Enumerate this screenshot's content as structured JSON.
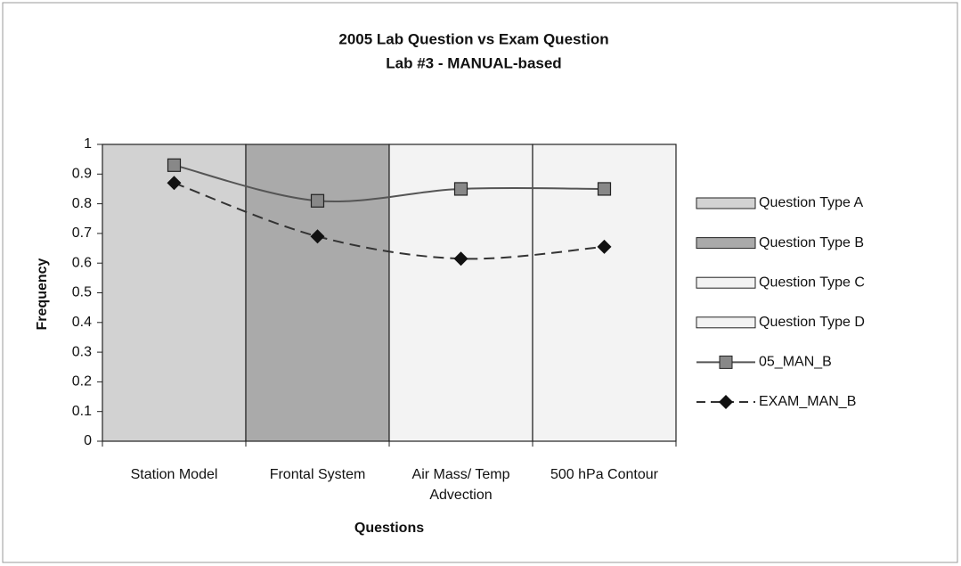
{
  "chart_data": {
    "type": "bar",
    "title": "2005 Lab Question vs Exam Question",
    "subtitle": "Lab #3 - MANUAL-based",
    "x_label": "Questions",
    "y_label": "Frequency",
    "categories": [
      "Station Model",
      "Frontal System",
      "Air Mass/ Temp Advection",
      "500 hPa Contour"
    ],
    "series": [
      {
        "name": "Question Type A",
        "color": "#d2d2d2",
        "values": [
          1,
          null,
          null,
          null
        ]
      },
      {
        "name": "Question Type B",
        "color": "#aaaaaa",
        "values": [
          null,
          1,
          null,
          null
        ]
      },
      {
        "name": "Question Type C",
        "color": "#f3f3f3",
        "values": [
          null,
          null,
          1,
          null
        ]
      },
      {
        "name": "Question Type D",
        "color": "#f3f3f3",
        "values": [
          null,
          null,
          null,
          1
        ]
      },
      {
        "name": "05_MAN_B",
        "type": "line",
        "color": "#555555",
        "marker": "square",
        "values": [
          0.93,
          0.81,
          0.85,
          0.85
        ]
      },
      {
        "name": "EXAM_MAN_B",
        "type": "line",
        "color": "#333333",
        "marker": "diamond",
        "dash": true,
        "values": [
          0.87,
          0.69,
          0.615,
          0.655
        ]
      }
    ],
    "ylim": [
      0,
      1
    ],
    "yticks": [
      0,
      0.1,
      0.2,
      0.3,
      0.4,
      0.5,
      0.6,
      0.7,
      0.8,
      0.9,
      1
    ],
    "legend": "right"
  }
}
